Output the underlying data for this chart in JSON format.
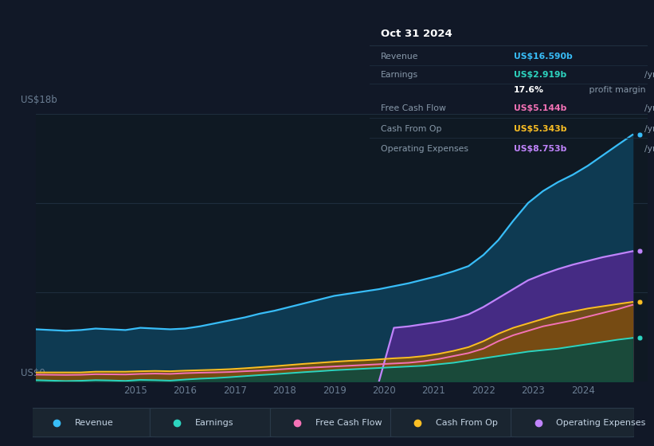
{
  "background_color": "#111827",
  "plot_bg_color": "#0f1923",
  "grid_color": "#1e2d3d",
  "y_label": "US$18b",
  "y_zero_label": "US$0",
  "ylim": [
    0,
    18
  ],
  "xlim": [
    2013.0,
    2025.3
  ],
  "x_ticks": [
    2015,
    2016,
    2017,
    2018,
    2019,
    2020,
    2021,
    2022,
    2023,
    2024
  ],
  "revenue_x": [
    2013.0,
    2013.3,
    2013.6,
    2013.9,
    2014.2,
    2014.5,
    2014.8,
    2015.1,
    2015.4,
    2015.7,
    2016.0,
    2016.3,
    2016.6,
    2016.9,
    2017.2,
    2017.5,
    2017.8,
    2018.1,
    2018.4,
    2018.7,
    2019.0,
    2019.3,
    2019.6,
    2019.9,
    2020.2,
    2020.5,
    2020.8,
    2021.1,
    2021.4,
    2021.7,
    2022.0,
    2022.3,
    2022.6,
    2022.9,
    2023.2,
    2023.5,
    2023.8,
    2024.1,
    2024.4,
    2024.7,
    2025.0
  ],
  "revenue_y": [
    3.5,
    3.45,
    3.4,
    3.45,
    3.55,
    3.5,
    3.45,
    3.6,
    3.55,
    3.5,
    3.55,
    3.7,
    3.9,
    4.1,
    4.3,
    4.55,
    4.75,
    5.0,
    5.25,
    5.5,
    5.75,
    5.9,
    6.05,
    6.2,
    6.4,
    6.6,
    6.85,
    7.1,
    7.4,
    7.75,
    8.5,
    9.5,
    10.8,
    12.0,
    12.8,
    13.4,
    13.9,
    14.5,
    15.2,
    15.9,
    16.59
  ],
  "earnings_x": [
    2013.0,
    2013.3,
    2013.6,
    2013.9,
    2014.2,
    2014.5,
    2014.8,
    2015.1,
    2015.4,
    2015.7,
    2016.0,
    2016.3,
    2016.6,
    2016.9,
    2017.2,
    2017.5,
    2017.8,
    2018.1,
    2018.4,
    2018.7,
    2019.0,
    2019.3,
    2019.6,
    2019.9,
    2020.2,
    2020.5,
    2020.8,
    2021.1,
    2021.4,
    2021.7,
    2022.0,
    2022.3,
    2022.6,
    2022.9,
    2023.2,
    2023.5,
    2023.8,
    2024.1,
    2024.4,
    2024.7,
    2025.0
  ],
  "earnings_y": [
    0.08,
    0.05,
    0.02,
    0.04,
    0.08,
    0.06,
    0.03,
    0.1,
    0.08,
    0.05,
    0.12,
    0.18,
    0.22,
    0.28,
    0.35,
    0.42,
    0.48,
    0.55,
    0.62,
    0.68,
    0.75,
    0.8,
    0.85,
    0.9,
    0.95,
    1.0,
    1.05,
    1.15,
    1.25,
    1.4,
    1.55,
    1.7,
    1.85,
    2.0,
    2.1,
    2.2,
    2.35,
    2.5,
    2.65,
    2.8,
    2.919
  ],
  "fcf_x": [
    2013.0,
    2013.3,
    2013.6,
    2013.9,
    2014.2,
    2014.5,
    2014.8,
    2015.1,
    2015.4,
    2015.7,
    2016.0,
    2016.3,
    2016.6,
    2016.9,
    2017.2,
    2017.5,
    2017.8,
    2018.1,
    2018.4,
    2018.7,
    2019.0,
    2019.3,
    2019.6,
    2019.9,
    2020.2,
    2020.5,
    2020.8,
    2021.1,
    2021.4,
    2021.7,
    2022.0,
    2022.3,
    2022.6,
    2022.9,
    2023.2,
    2023.5,
    2023.8,
    2024.1,
    2024.4,
    2024.7,
    2025.0
  ],
  "fcf_y": [
    0.45,
    0.44,
    0.43,
    0.44,
    0.48,
    0.47,
    0.46,
    0.5,
    0.52,
    0.5,
    0.55,
    0.58,
    0.6,
    0.63,
    0.68,
    0.72,
    0.78,
    0.85,
    0.9,
    0.95,
    1.0,
    1.05,
    1.1,
    1.15,
    1.2,
    1.25,
    1.35,
    1.5,
    1.7,
    1.9,
    2.2,
    2.7,
    3.1,
    3.4,
    3.7,
    3.9,
    4.1,
    4.35,
    4.6,
    4.85,
    5.144
  ],
  "cop_x": [
    2013.0,
    2013.3,
    2013.6,
    2013.9,
    2014.2,
    2014.5,
    2014.8,
    2015.1,
    2015.4,
    2015.7,
    2016.0,
    2016.3,
    2016.6,
    2016.9,
    2017.2,
    2017.5,
    2017.8,
    2018.1,
    2018.4,
    2018.7,
    2019.0,
    2019.3,
    2019.6,
    2019.9,
    2020.2,
    2020.5,
    2020.8,
    2021.1,
    2021.4,
    2021.7,
    2022.0,
    2022.3,
    2022.6,
    2022.9,
    2023.2,
    2023.5,
    2023.8,
    2024.1,
    2024.4,
    2024.7,
    2025.0
  ],
  "cop_y": [
    0.6,
    0.6,
    0.6,
    0.6,
    0.65,
    0.65,
    0.65,
    0.68,
    0.7,
    0.68,
    0.72,
    0.75,
    0.78,
    0.82,
    0.88,
    0.95,
    1.02,
    1.1,
    1.18,
    1.25,
    1.32,
    1.38,
    1.42,
    1.48,
    1.55,
    1.6,
    1.7,
    1.85,
    2.05,
    2.3,
    2.7,
    3.2,
    3.6,
    3.9,
    4.2,
    4.5,
    4.7,
    4.9,
    5.05,
    5.2,
    5.343
  ],
  "opex_x": [
    2019.9,
    2020.2,
    2020.5,
    2020.8,
    2021.1,
    2021.4,
    2021.7,
    2022.0,
    2022.3,
    2022.6,
    2022.9,
    2023.2,
    2023.5,
    2023.8,
    2024.1,
    2024.4,
    2024.7,
    2025.0
  ],
  "opex_y": [
    0.0,
    3.6,
    3.7,
    3.85,
    4.0,
    4.2,
    4.5,
    5.0,
    5.6,
    6.2,
    6.8,
    7.2,
    7.55,
    7.85,
    8.1,
    8.35,
    8.55,
    8.753
  ],
  "info_box": {
    "title": "Oct 31 2024",
    "rows": [
      {
        "label": "Revenue",
        "value": "US$16.590b",
        "unit": "/yr",
        "value_color": "#38bdf8"
      },
      {
        "label": "Earnings",
        "value": "US$2.919b",
        "unit": "/yr",
        "value_color": "#2dd4bf"
      },
      {
        "label": "",
        "value": "17.6%",
        "unit": " profit margin",
        "value_color": "#ffffff",
        "bold": true
      },
      {
        "label": "Free Cash Flow",
        "value": "US$5.144b",
        "unit": "/yr",
        "value_color": "#f472b6"
      },
      {
        "label": "Cash From Op",
        "value": "US$5.343b",
        "unit": "/yr",
        "value_color": "#fbbf24"
      },
      {
        "label": "Operating Expenses",
        "value": "US$8.753b",
        "unit": "/yr",
        "value_color": "#c084fc"
      }
    ],
    "divider_rows": [
      0,
      1,
      3,
      4
    ]
  },
  "legend": [
    {
      "label": "Revenue",
      "color": "#38bdf8"
    },
    {
      "label": "Earnings",
      "color": "#2dd4bf"
    },
    {
      "label": "Free Cash Flow",
      "color": "#f472b6"
    },
    {
      "label": "Cash From Op",
      "color": "#fbbf24"
    },
    {
      "label": "Operating Expenses",
      "color": "#c084fc"
    }
  ]
}
